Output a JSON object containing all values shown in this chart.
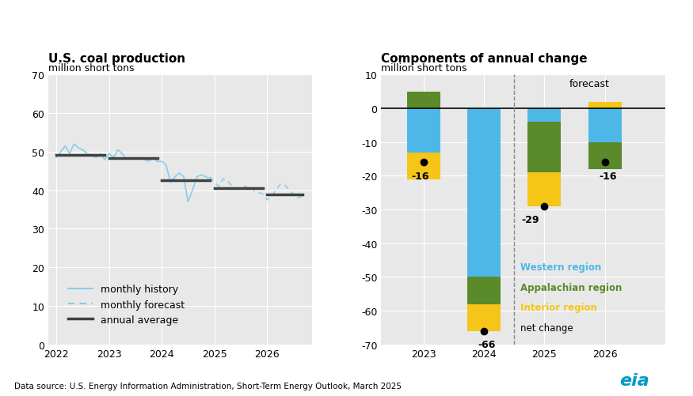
{
  "left_title": "U.S. coal production",
  "left_subtitle": "million short tons",
  "right_title": "Components of annual change",
  "right_subtitle": "million short tons",
  "left_ylim": [
    0,
    70
  ],
  "left_yticks": [
    0,
    10,
    20,
    30,
    40,
    50,
    60,
    70
  ],
  "right_ylim": [
    -70,
    10
  ],
  "right_yticks": [
    -70,
    -60,
    -50,
    -40,
    -30,
    -20,
    -10,
    0,
    10
  ],
  "monthly_history_x": [
    2022.0,
    2022.083,
    2022.167,
    2022.25,
    2022.333,
    2022.417,
    2022.5,
    2022.583,
    2022.667,
    2022.75,
    2022.833,
    2022.917,
    2023.0,
    2023.083,
    2023.167,
    2023.25,
    2023.333,
    2023.417,
    2023.5,
    2023.583,
    2023.667,
    2023.75,
    2023.833,
    2023.917,
    2024.0,
    2024.083,
    2024.167,
    2024.25,
    2024.333,
    2024.417,
    2024.5,
    2024.583,
    2024.667,
    2024.75,
    2024.833,
    2024.917
  ],
  "monthly_history_y": [
    48.5,
    50.0,
    51.5,
    49.5,
    52.0,
    51.0,
    50.5,
    49.5,
    49.0,
    48.5,
    49.5,
    48.0,
    49.5,
    48.5,
    50.5,
    49.5,
    48.0,
    48.5,
    48.0,
    48.5,
    48.0,
    47.5,
    48.5,
    47.5,
    47.5,
    46.5,
    42.0,
    43.5,
    44.5,
    43.5,
    37.0,
    40.0,
    43.5,
    44.0,
    43.5,
    43.0
  ],
  "monthly_forecast_x": [
    2024.917,
    2025.0,
    2025.083,
    2025.167,
    2025.25,
    2025.333,
    2025.417,
    2025.5,
    2025.583,
    2025.667,
    2025.75,
    2025.833,
    2025.917,
    2026.0,
    2026.083,
    2026.167,
    2026.25,
    2026.333,
    2026.417,
    2026.5,
    2026.583,
    2026.667
  ],
  "monthly_forecast_y": [
    43.5,
    42.0,
    41.0,
    43.0,
    42.5,
    41.0,
    40.5,
    40.0,
    41.0,
    41.0,
    40.0,
    39.5,
    39.0,
    37.5,
    38.5,
    40.0,
    41.5,
    41.5,
    40.0,
    39.0,
    38.0,
    38.5
  ],
  "annual_avg_segments": [
    {
      "x": [
        2022.0,
        2022.917
      ],
      "y": [
        49.2,
        49.2
      ]
    },
    {
      "x": [
        2023.0,
        2023.917
      ],
      "y": [
        48.3,
        48.3
      ]
    },
    {
      "x": [
        2024.0,
        2024.917
      ],
      "y": [
        42.5,
        42.5
      ]
    },
    {
      "x": [
        2025.0,
        2025.917
      ],
      "y": [
        40.5,
        40.5
      ]
    },
    {
      "x": [
        2026.0,
        2026.667
      ],
      "y": [
        39.0,
        39.0
      ]
    }
  ],
  "bar_years": [
    2023,
    2024,
    2025,
    2026
  ],
  "western_vals": [
    -13,
    -50,
    -4,
    -10
  ],
  "appalachian_vals": [
    5,
    -8,
    -15,
    -8
  ],
  "interior_vals": [
    -8,
    -8,
    -10,
    2
  ],
  "net_change": [
    -16,
    -66,
    -29,
    -16
  ],
  "western_color": "#4DB8E8",
  "appalachian_color": "#5A8A2A",
  "interior_color": "#F5C518",
  "net_dot_color": "#000000",
  "history_line_color": "#87CEEB",
  "forecast_line_color": "#87CEEB",
  "annual_avg_color": "#404040",
  "background_color": "#e8e8e8",
  "footer_text": "Data source: U.S. Energy Information Administration, Short-Term Energy Outlook, March 2025"
}
